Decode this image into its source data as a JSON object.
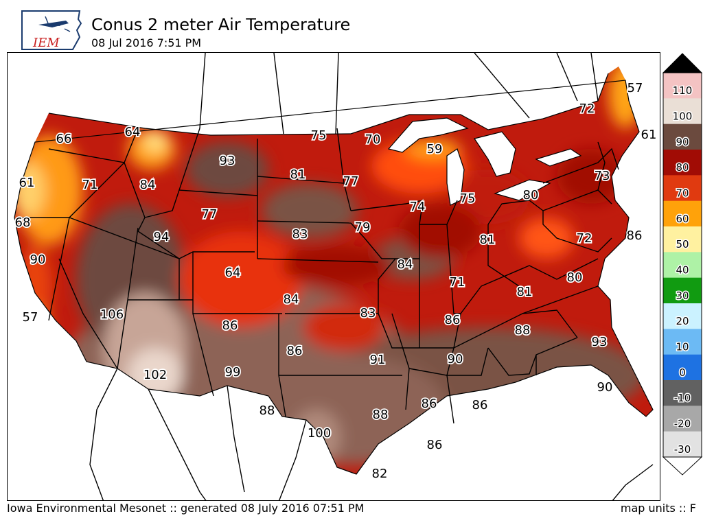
{
  "header": {
    "title": "Conus 2 meter Air Temperature",
    "subtitle": "08 Jul 2016 7:51 PM",
    "logo_text": "IEM"
  },
  "footer": {
    "left": "Iowa Environmental Mesonet :: generated 08 July 2016 07:51 PM",
    "right": "map units :: F"
  },
  "map": {
    "region": "Continental United States",
    "variable": "2 meter air temperature",
    "station_labels": [
      {
        "value": "66",
        "place": "western Washington"
      },
      {
        "value": "64",
        "place": "northern Idaho panhandle"
      },
      {
        "value": "61",
        "place": "western Oregon coast"
      },
      {
        "value": "71",
        "place": "central Oregon"
      },
      {
        "value": "84",
        "place": "northeast Oregon / western Idaho"
      },
      {
        "value": "93",
        "place": "eastern Montana"
      },
      {
        "value": "75",
        "place": "North Dakota / Canada border"
      },
      {
        "value": "70",
        "place": "northern Minnesota"
      },
      {
        "value": "59",
        "place": "Upper Michigan / Lake Superior"
      },
      {
        "value": "57",
        "place": "northern Maine"
      },
      {
        "value": "72",
        "place": "northern New York"
      },
      {
        "value": "61",
        "place": "southern Maine coast"
      },
      {
        "value": "81",
        "place": "central North Dakota"
      },
      {
        "value": "77",
        "place": "eastern North Dakota"
      },
      {
        "value": "77",
        "place": "Wyoming"
      },
      {
        "value": "74",
        "place": "southern Wisconsin"
      },
      {
        "value": "75",
        "place": "Lake Michigan"
      },
      {
        "value": "80",
        "place": "Ohio / Pennsylvania"
      },
      {
        "value": "73",
        "place": "New Jersey"
      },
      {
        "value": "68",
        "place": "northern California coast"
      },
      {
        "value": "94",
        "place": "northern Utah"
      },
      {
        "value": "83",
        "place": "Nebraska"
      },
      {
        "value": "79",
        "place": "Iowa"
      },
      {
        "value": "81",
        "place": "Indiana"
      },
      {
        "value": "72",
        "place": "Virginia"
      },
      {
        "value": "86",
        "place": "Virginia coast"
      },
      {
        "value": "90",
        "place": "central California"
      },
      {
        "value": "64",
        "place": "Colorado"
      },
      {
        "value": "84",
        "place": "Missouri"
      },
      {
        "value": "84",
        "place": "Kansas / Oklahoma border"
      },
      {
        "value": "71",
        "place": "southern Illinois"
      },
      {
        "value": "81",
        "place": "Tennessee"
      },
      {
        "value": "80",
        "place": "South Carolina"
      },
      {
        "value": "57",
        "place": "southern California coast"
      },
      {
        "value": "106",
        "place": "southern Nevada"
      },
      {
        "value": "86",
        "place": "northern New Mexico"
      },
      {
        "value": "83",
        "place": "Arkansas"
      },
      {
        "value": "86",
        "place": "Mississippi"
      },
      {
        "value": "88",
        "place": "Alabama"
      },
      {
        "value": "93",
        "place": "Georgia"
      },
      {
        "value": "86",
        "place": "Oklahoma panhandle"
      },
      {
        "value": "91",
        "place": "northeast Texas"
      },
      {
        "value": "90",
        "place": "Louisiana"
      },
      {
        "value": "102",
        "place": "southwest Arizona"
      },
      {
        "value": "99",
        "place": "southern New Mexico"
      },
      {
        "value": "90",
        "place": "central Florida"
      },
      {
        "value": "88",
        "place": "west Texas"
      },
      {
        "value": "88",
        "place": "central Texas"
      },
      {
        "value": "86",
        "place": "Louisiana coast"
      },
      {
        "value": "86",
        "place": "Mississippi coast"
      },
      {
        "value": "100",
        "place": "south Texas"
      },
      {
        "value": "86",
        "place": "Gulf of Mexico buoy"
      },
      {
        "value": "82",
        "place": "Texas coast"
      }
    ]
  },
  "colorbar": {
    "units": "F",
    "ticks": [
      "110",
      "100",
      "90",
      "80",
      "70",
      "60",
      "50",
      "40",
      "30",
      "20",
      "10",
      "0",
      "-10",
      "-20",
      "-30"
    ],
    "colors": [
      "#f4c3c3",
      "#eadfd6",
      "#6b4a3e",
      "#a10c05",
      "#e03a10",
      "#ffa20a",
      "#fff1a0",
      "#aef2a6",
      "#119b11",
      "#cbf2ff",
      "#6cbaf4",
      "#1e72e2",
      "#616161",
      "#a8a8a8",
      "#e2e2e2"
    ]
  }
}
